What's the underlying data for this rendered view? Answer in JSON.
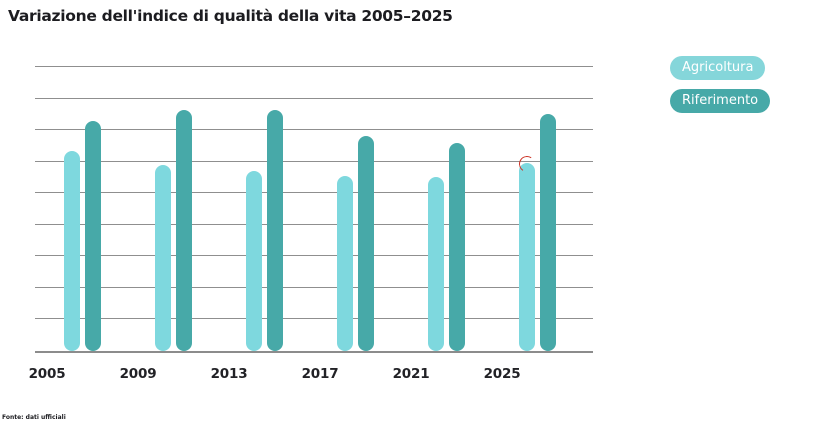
{
  "title": "Variazione dell'indice di qualità della vita 2005–2025",
  "footer": "Fonte: dati ufficiali",
  "colors": {
    "background": "#ffffff",
    "gridline": "#8f8f8f",
    "baseline": "#8c8c8c",
    "title_text": "#1c1c20",
    "axis_label_text": "#222226",
    "series_light": "#7ed8de",
    "series_dark": "#47a9a8",
    "legend_text": "#ffffff",
    "highlight_marker": "#cc3326"
  },
  "legend": {
    "position": "right",
    "items": [
      {
        "label": "Agricoltura",
        "color": "#85d6da"
      },
      {
        "label": "Riferimento",
        "color": "#47a9a8"
      }
    ]
  },
  "chart_data": {
    "type": "bar",
    "title": "Variazione dell'indice di qualità della vita 2005–2025",
    "categories": [
      "2005",
      "2009",
      "2013",
      "2017",
      "2021",
      "2025"
    ],
    "series": [
      {
        "name": "Agricoltura",
        "color": "#7ed8de",
        "values": [
          63.5,
          59,
          57,
          55.5,
          55,
          59.5
        ]
      },
      {
        "name": "Riferimento",
        "color": "#47a9a8",
        "values": [
          73,
          76.5,
          76.5,
          68,
          66,
          75
        ]
      }
    ],
    "xlabel": "",
    "ylabel": "",
    "ylim": [
      0,
      90
    ],
    "grid_step": 10,
    "grid": "horizontal",
    "y_tick_labels_visible": false,
    "legend_position": "right",
    "highlight": {
      "series": "Agricoltura",
      "category": "2025",
      "marker_color": "#cc3326",
      "position": "bar-top-arc"
    }
  }
}
